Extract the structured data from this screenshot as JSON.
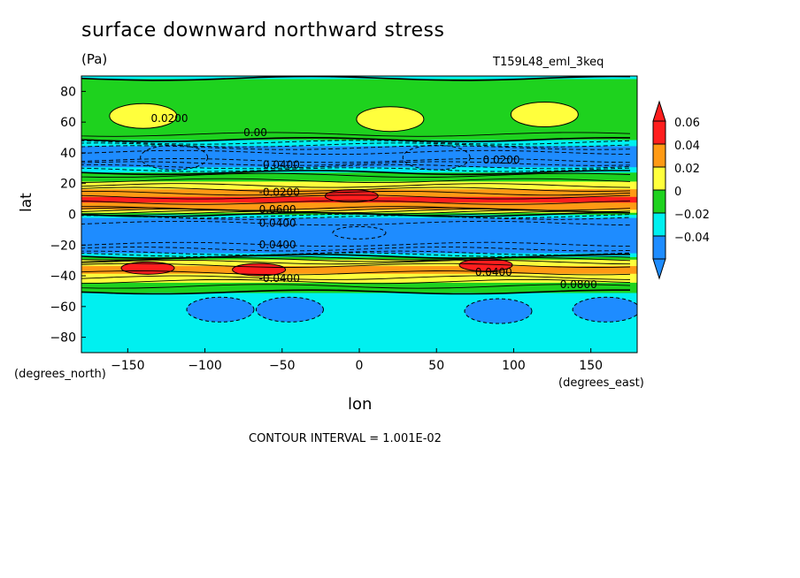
{
  "chart_data": {
    "type": "contour",
    "title": "surface downward northward stress",
    "units": "(Pa)",
    "run_label": "T159L48_eml_3keq",
    "xlabel": "lon",
    "ylabel": "lat",
    "x_units": "(degrees_east)",
    "y_units": "(degrees_north)",
    "xlim": [
      -180,
      180
    ],
    "ylim": [
      -90,
      90
    ],
    "x_ticks": [
      -150,
      -100,
      -50,
      0,
      50,
      100,
      150
    ],
    "y_ticks": [
      80,
      60,
      40,
      20,
      0,
      -20,
      -40,
      -60,
      -80
    ],
    "contour_interval_text": "CONTOUR INTERVAL = 1.001E-02",
    "colorbar": {
      "labels": [
        "0.06",
        "0.04",
        "0.02",
        "0",
        "−0.02",
        "−0.04"
      ],
      "colors": [
        "#ff1e1e",
        "#ff9a14",
        "#ffff3c",
        "#1ed21e",
        "#00f0f0",
        "#1e8cff"
      ]
    },
    "zonal_profile": [
      {
        "lat": -90,
        "value": -0.012
      },
      {
        "lat": -75,
        "value": -0.01
      },
      {
        "lat": -60,
        "value": -0.008
      },
      {
        "lat": -52,
        "value": -0.004
      },
      {
        "lat": -45,
        "value": 0.015
      },
      {
        "lat": -40,
        "value": 0.035
      },
      {
        "lat": -35,
        "value": 0.048
      },
      {
        "lat": -30,
        "value": 0.025
      },
      {
        "lat": -25,
        "value": -0.022
      },
      {
        "lat": -18,
        "value": -0.045
      },
      {
        "lat": -8,
        "value": -0.048
      },
      {
        "lat": -3,
        "value": -0.03
      },
      {
        "lat": 0,
        "value": 0.002
      },
      {
        "lat": 4,
        "value": 0.052
      },
      {
        "lat": 10,
        "value": 0.065
      },
      {
        "lat": 15,
        "value": 0.045
      },
      {
        "lat": 20,
        "value": 0.025
      },
      {
        "lat": 25,
        "value": 0.012
      },
      {
        "lat": 30,
        "value": -0.015
      },
      {
        "lat": 36,
        "value": -0.045
      },
      {
        "lat": 42,
        "value": -0.038
      },
      {
        "lat": 50,
        "value": 0.008
      },
      {
        "lat": 60,
        "value": 0.018
      },
      {
        "lat": 75,
        "value": 0.01
      },
      {
        "lat": 88,
        "value": 0.003
      },
      {
        "lat": 90,
        "value": -0.01
      }
    ],
    "regional_features": [
      {
        "lon": -140,
        "lat": 64,
        "value": 0.025
      },
      {
        "lon": 20,
        "lat": 62,
        "value": 0.03
      },
      {
        "lon": 120,
        "lat": 65,
        "value": 0.028
      },
      {
        "lon": -137,
        "lat": -35,
        "value": 0.065
      },
      {
        "lon": 82,
        "lat": -33,
        "value": 0.062
      },
      {
        "lon": -65,
        "lat": -36,
        "value": 0.061
      },
      {
        "lon": -45,
        "lat": -62,
        "value": -0.025
      },
      {
        "lon": 90,
        "lat": -63,
        "value": -0.03
      },
      {
        "lon": 160,
        "lat": -62,
        "value": -0.025
      },
      {
        "lon": -90,
        "lat": -62,
        "value": -0.022
      },
      {
        "lon": -5,
        "lat": 12,
        "value": 0.068
      },
      {
        "lon": 50,
        "lat": 37,
        "value": -0.05
      },
      {
        "lon": -120,
        "lat": 37,
        "value": -0.048
      },
      {
        "lon": 0,
        "lat": -12,
        "value": -0.052
      }
    ],
    "contour_labels": [
      "0.00",
      "0.0200",
      "0.00",
      "-0.0400",
      "-0.0200",
      "0.0600",
      "0.0400",
      "0.0400",
      "-0.0400",
      "0.0200",
      "0.0400",
      "0.0800"
    ]
  }
}
